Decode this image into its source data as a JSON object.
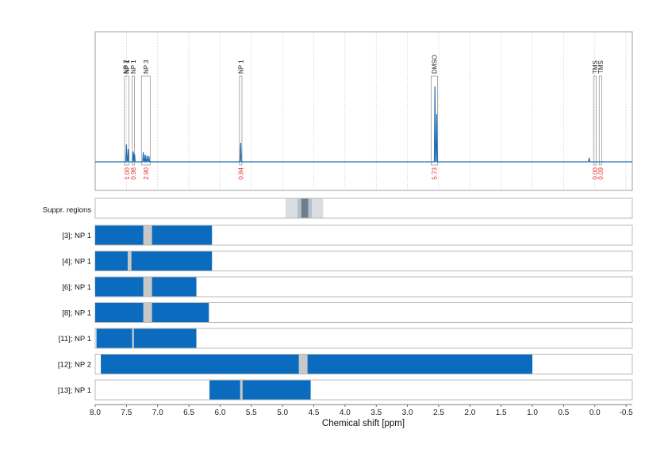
{
  "chart_data": {
    "type": "line",
    "title": "",
    "xlabel": "Chemical shift [ppm]",
    "x_range": [
      8.0,
      -0.6
    ],
    "x_reversed": true,
    "x_ticks": [
      "8.0",
      "7.5",
      "7.0",
      "6.5",
      "6.0",
      "5.5",
      "5.0",
      "4.5",
      "4.0",
      "3.5",
      "3.0",
      "2.5",
      "2.0",
      "1.5",
      "1.0",
      "0.5",
      "0.0",
      "-0.5"
    ],
    "grid": "vertical dotted",
    "colors": {
      "spectrum": "#1f6db1",
      "range_bar": "#0a6bbf",
      "integral_text": "#e8312b",
      "gap": "#c8c8c8",
      "suppr_outer": "#d9dee4",
      "suppr_mid": "#b6c0cc",
      "suppr_inner": "#6f7e8d"
    },
    "spectrum_peaks": [
      {
        "ppm": 7.5,
        "height": 0.22
      },
      {
        "ppm": 7.47,
        "height": 0.16
      },
      {
        "ppm": 7.39,
        "height": 0.13
      },
      {
        "ppm": 7.37,
        "height": 0.1
      },
      {
        "ppm": 7.23,
        "height": 0.12
      },
      {
        "ppm": 7.2,
        "height": 0.09
      },
      {
        "ppm": 7.17,
        "height": 0.08
      },
      {
        "ppm": 7.14,
        "height": 0.07
      },
      {
        "ppm": 5.67,
        "height": 0.24
      },
      {
        "ppm": 2.56,
        "height": 0.95
      },
      {
        "ppm": 2.53,
        "height": 0.6
      },
      {
        "ppm": 0.09,
        "height": 0.05
      }
    ],
    "peak_annotations": [
      {
        "ppm_left": 7.53,
        "ppm_right": 7.46,
        "labels": [
          "NP 1",
          "NP 2"
        ],
        "integral": "1.00"
      },
      {
        "ppm_left": 7.41,
        "ppm_right": 7.37,
        "labels": [
          "NP 1"
        ],
        "integral": "0.98"
      },
      {
        "ppm_left": 7.26,
        "ppm_right": 7.12,
        "labels": [
          "NP 3"
        ],
        "integral": "2.90"
      },
      {
        "ppm_left": 5.69,
        "ppm_right": 5.65,
        "labels": [
          "NP 1"
        ],
        "integral": "0.84"
      },
      {
        "ppm_left": 2.62,
        "ppm_right": 2.52,
        "labels": [
          "DMSO"
        ],
        "integral": "5.73"
      },
      {
        "ppm_left": 0.02,
        "ppm_right": -0.02,
        "labels": [
          "TMS"
        ],
        "integral": "0.00"
      },
      {
        "ppm_left": -0.07,
        "ppm_right": -0.11,
        "labels": [
          "TMS"
        ],
        "integral": "0.09"
      }
    ],
    "suppression_regions": [
      {
        "start": 4.95,
        "end": 4.35,
        "level": "outer"
      },
      {
        "start": 4.76,
        "end": 4.53,
        "level": "mid"
      },
      {
        "start": 4.7,
        "end": 4.59,
        "level": "inner"
      }
    ],
    "suppr_label": "Suppr. regions",
    "ranges": [
      {
        "label": "[3]; NP 1",
        "start": 8.0,
        "end": 6.13,
        "gap": [
          7.23,
          7.09
        ]
      },
      {
        "label": "[4]; NP 1",
        "start": 8.0,
        "end": 6.13,
        "gap": [
          7.48,
          7.42
        ]
      },
      {
        "label": "[6]; NP 1",
        "start": 8.0,
        "end": 6.38,
        "gap": [
          7.23,
          7.09
        ]
      },
      {
        "label": "[8]; NP 1",
        "start": 8.0,
        "end": 6.18,
        "gap": [
          7.23,
          7.09
        ]
      },
      {
        "label": "[11]; NP 1",
        "start": 7.98,
        "end": 6.38,
        "gap": [
          7.41,
          7.38
        ]
      },
      {
        "label": "[12]; NP 2",
        "start": 7.91,
        "end": 1.0,
        "gap": [
          4.74,
          4.6
        ]
      },
      {
        "label": "[13]; NP 1",
        "start": 6.17,
        "end": 4.55,
        "gap": [
          5.68,
          5.64
        ]
      }
    ]
  }
}
